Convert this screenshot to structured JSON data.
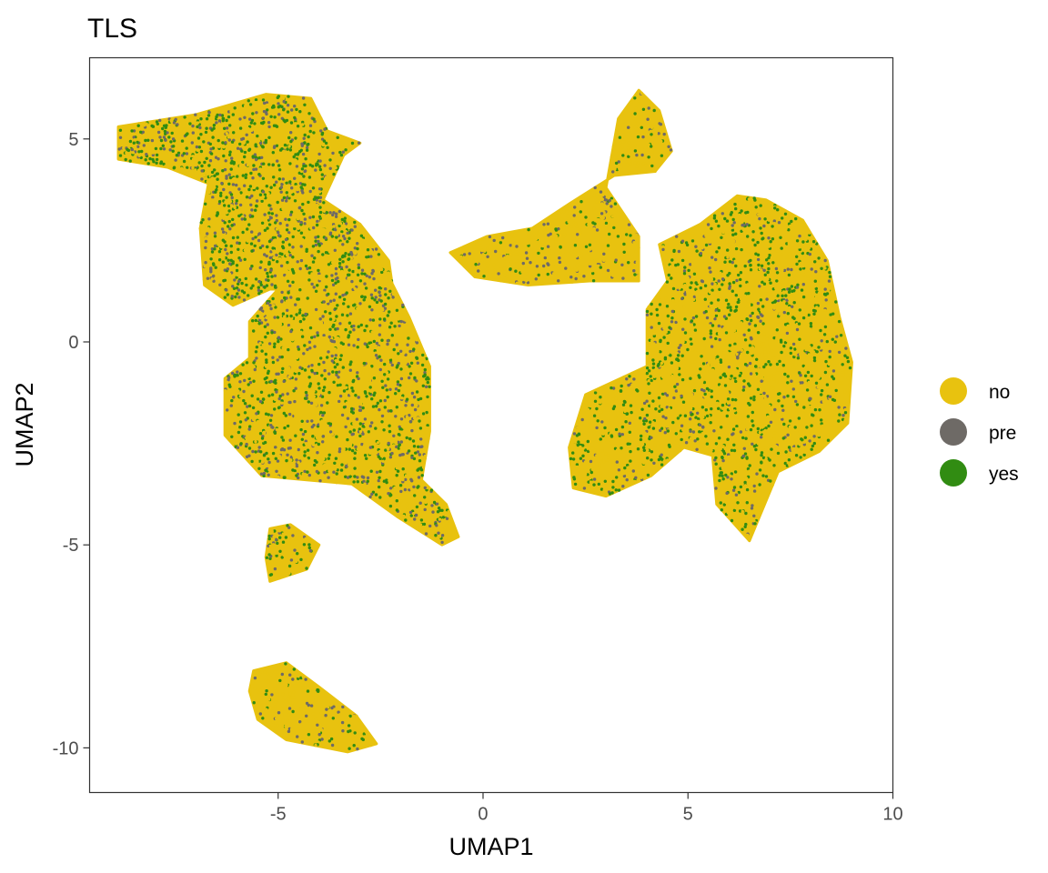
{
  "chart_data": {
    "type": "scatter",
    "title": "TLS",
    "xlabel": "UMAP1",
    "ylabel": "UMAP2",
    "xlim": [
      -9.6,
      10
    ],
    "ylim": [
      -11.1,
      7.0
    ],
    "x_ticks": [
      -5,
      0,
      5,
      10
    ],
    "x_tick_labels": [
      "-5",
      "0",
      "5",
      "10"
    ],
    "y_ticks": [
      -10,
      -5,
      0,
      5
    ],
    "y_tick_labels": [
      "-10",
      "-5",
      "0",
      "5"
    ],
    "grid": false,
    "legend_position": "right",
    "series": [
      {
        "name": "no",
        "color": "#E8C20F"
      },
      {
        "name": "pre",
        "color": "#6E6A66"
      },
      {
        "name": "yes",
        "color": "#318C12"
      }
    ],
    "clusters": [
      {
        "series_weights": [
          0.35,
          0.25,
          0.4
        ],
        "polygon": [
          [
            -8.9,
            5.3
          ],
          [
            -7.0,
            5.6
          ],
          [
            -5.3,
            6.1
          ],
          [
            -4.2,
            6.0
          ],
          [
            -3.8,
            5.2
          ],
          [
            -3.0,
            4.9
          ],
          [
            -3.4,
            4.6
          ],
          [
            -3.9,
            3.5
          ],
          [
            -3.0,
            2.9
          ],
          [
            -2.3,
            2.0
          ],
          [
            -2.2,
            1.3
          ],
          [
            -3.1,
            1.0
          ],
          [
            -4.4,
            1.3
          ],
          [
            -5.2,
            1.3
          ],
          [
            -6.1,
            0.9
          ],
          [
            -6.8,
            1.4
          ],
          [
            -6.9,
            2.8
          ],
          [
            -6.7,
            3.9
          ],
          [
            -7.7,
            4.3
          ],
          [
            -8.9,
            4.5
          ]
        ]
      },
      {
        "series_weights": [
          0.45,
          0.22,
          0.33
        ],
        "polygon": [
          [
            -5.0,
            1.3
          ],
          [
            -4.0,
            2.8
          ],
          [
            -2.9,
            2.5
          ],
          [
            -2.3,
            1.6
          ],
          [
            -1.8,
            0.6
          ],
          [
            -1.3,
            -0.6
          ],
          [
            -1.3,
            -2.2
          ],
          [
            -1.5,
            -3.4
          ],
          [
            -0.9,
            -4.0
          ],
          [
            -0.6,
            -4.8
          ],
          [
            -1.0,
            -5.0
          ],
          [
            -2.1,
            -4.3
          ],
          [
            -3.2,
            -3.5
          ],
          [
            -4.3,
            -3.4
          ],
          [
            -5.4,
            -3.3
          ],
          [
            -6.3,
            -2.3
          ],
          [
            -6.3,
            -0.9
          ],
          [
            -5.7,
            -0.4
          ],
          [
            -5.7,
            0.5
          ]
        ]
      },
      {
        "series_weights": [
          0.6,
          0.15,
          0.25
        ],
        "polygon": [
          [
            -5.2,
            -4.6
          ],
          [
            -4.7,
            -4.5
          ],
          [
            -4.0,
            -5.0
          ],
          [
            -4.3,
            -5.6
          ],
          [
            -5.2,
            -5.9
          ],
          [
            -5.3,
            -5.3
          ]
        ]
      },
      {
        "series_weights": [
          0.78,
          0.1,
          0.12
        ],
        "polygon": [
          [
            -5.6,
            -8.1
          ],
          [
            -4.8,
            -7.9
          ],
          [
            -4.0,
            -8.5
          ],
          [
            -3.1,
            -9.2
          ],
          [
            -2.6,
            -9.9
          ],
          [
            -3.3,
            -10.1
          ],
          [
            -4.8,
            -9.8
          ],
          [
            -5.5,
            -9.3
          ],
          [
            -5.7,
            -8.6
          ]
        ]
      },
      {
        "series_weights": [
          0.78,
          0.12,
          0.1
        ],
        "polygon": [
          [
            3.3,
            5.5
          ],
          [
            3.8,
            6.2
          ],
          [
            4.3,
            5.7
          ],
          [
            4.6,
            4.7
          ],
          [
            4.2,
            4.2
          ],
          [
            3.2,
            4.1
          ],
          [
            2.1,
            3.4
          ],
          [
            1.2,
            2.8
          ],
          [
            0.1,
            2.6
          ],
          [
            -0.8,
            2.2
          ],
          [
            -0.2,
            1.6
          ],
          [
            1.1,
            1.4
          ],
          [
            2.6,
            1.5
          ],
          [
            3.8,
            1.5
          ],
          [
            3.8,
            2.6
          ],
          [
            3.0,
            3.8
          ]
        ]
      },
      {
        "series_weights": [
          0.62,
          0.1,
          0.28
        ],
        "polygon": [
          [
            4.3,
            2.4
          ],
          [
            5.3,
            2.9
          ],
          [
            6.2,
            3.6
          ],
          [
            6.9,
            3.5
          ],
          [
            7.8,
            3.0
          ],
          [
            8.4,
            2.0
          ],
          [
            8.7,
            0.6
          ],
          [
            9.0,
            -0.5
          ],
          [
            8.9,
            -2.0
          ],
          [
            8.2,
            -2.7
          ],
          [
            7.2,
            -3.2
          ],
          [
            6.5,
            -4.9
          ],
          [
            5.7,
            -4.0
          ],
          [
            5.6,
            -2.8
          ],
          [
            4.9,
            -2.6
          ],
          [
            4.1,
            -3.3
          ],
          [
            3.0,
            -3.8
          ],
          [
            2.2,
            -3.6
          ],
          [
            2.1,
            -2.6
          ],
          [
            2.5,
            -1.3
          ],
          [
            4.0,
            -0.6
          ],
          [
            4.0,
            0.8
          ],
          [
            4.5,
            1.5
          ]
        ]
      }
    ]
  },
  "legend": {
    "title": "",
    "entries": [
      {
        "label": "no",
        "color": "#E8C20F"
      },
      {
        "label": "pre",
        "color": "#6E6A66"
      },
      {
        "label": "yes",
        "color": "#318C12"
      }
    ]
  }
}
